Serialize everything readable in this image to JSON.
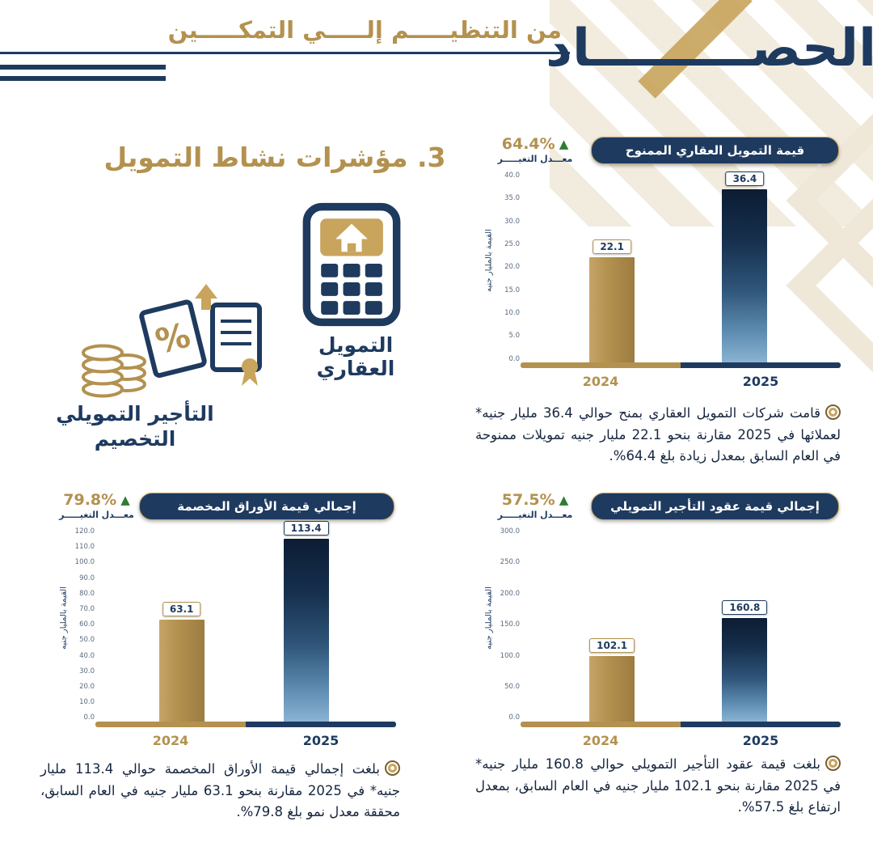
{
  "header": {
    "subtitle": "من التنظيـــــم إلـــــي التمكـــــين",
    "masthead": "الحصـــــــــاد"
  },
  "section": {
    "title": "3. مؤشرات نشاط التمويل",
    "real_estate_icon_label": "التمويل العقاري",
    "leasing_icon_label_line1": "التأجير التمويلي",
    "leasing_icon_label_line2": "التخصيم"
  },
  "chart_data": [
    {
      "id": "granted-real-estate-finance",
      "type": "bar",
      "title": "قيمة التمويل العقاري الممنوح",
      "change_rate": "64.4%",
      "change_label": "معـــدل التغيـــــر",
      "ylabel": "القيمة بالمليار جنيه",
      "categories": [
        "2024",
        "2025"
      ],
      "values": [
        22.1,
        36.4
      ],
      "ylim": [
        0,
        40
      ],
      "tick_step": 5,
      "legend_position": "none",
      "note": "قامت شركات التمويل العقاري بمنح حوالي 36.4 مليار جنيه* لعملائها في 2025 مقارنة بنحو 22.1 مليار جنيه تمويلات ممنوحة في العام السابق بمعدل زيادة بلغ 64.4%."
    },
    {
      "id": "total-discounted-papers",
      "type": "bar",
      "title": "إجمالي قيمة الأوراق المخصمة",
      "change_rate": "79.8%",
      "change_label": "معـــدل التغيـــــر",
      "ylabel": "القيمة بالمليار جنيه",
      "categories": [
        "2024",
        "2025"
      ],
      "values": [
        63.1,
        113.4
      ],
      "ylim": [
        0,
        120
      ],
      "tick_step": 10,
      "legend_position": "none",
      "note": "بلغت إجمالي قيمة الأوراق المخصمة حوالي 113.4 مليار جنيه* في 2025 مقارنة بنحو 63.1 مليار جنيه في العام السابق، محققة معدل نمو بلغ 79.8%."
    },
    {
      "id": "total-financial-leasing-contracts",
      "type": "bar",
      "title": "إجمالي قيمة عقود التأجير التمويلي",
      "change_rate": "57.5%",
      "change_label": "معـــدل التغيـــــر",
      "ylabel": "القيمة بالمليار جنيه",
      "categories": [
        "2024",
        "2025"
      ],
      "values": [
        102.1,
        160.8
      ],
      "ylim": [
        0,
        300
      ],
      "tick_step": 50,
      "legend_position": "none",
      "note": "بلغت قيمة عقود التأجير التمويلي حوالي 160.8 مليار جنيه* في 2025 مقارنة بنحو 102.1 مليار جنيه في العام السابق، بمعدل ارتفاع بلغ 57.5%."
    }
  ],
  "colors": {
    "navy": "#1e3a5f",
    "gold": "#b3914f",
    "gold_bright": "#c8a45c",
    "green": "#2e7d32",
    "beige": "#efe8d9",
    "text_dark": "#16263f",
    "tick": "#5a6b80"
  }
}
